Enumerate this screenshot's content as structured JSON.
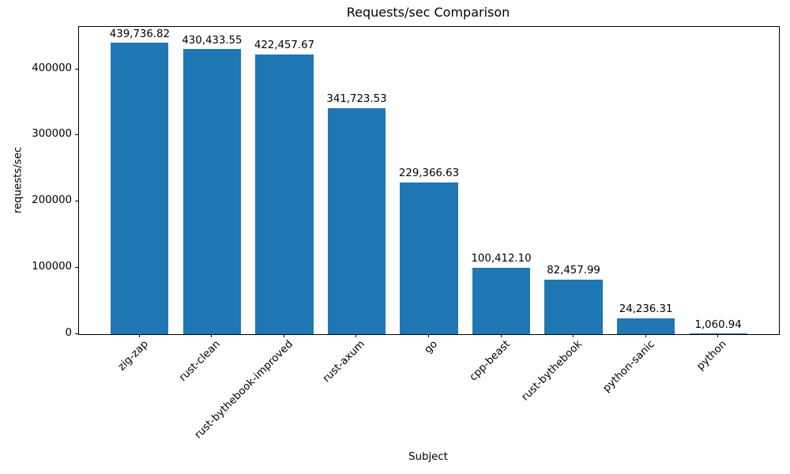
{
  "chart_data": {
    "type": "bar",
    "title": "Requests/sec Comparison",
    "xlabel": "Subject",
    "ylabel": "requests/sec",
    "categories": [
      "zig-zap",
      "rust-clean",
      "rust-bythebook-improved",
      "rust-axum",
      "go",
      "cpp-beast",
      "rust-bythebook",
      "python-sanic",
      "python"
    ],
    "values": [
      439736.82,
      430433.55,
      422457.67,
      341723.53,
      229366.63,
      100412.1,
      82457.99,
      24236.31,
      1060.94
    ],
    "value_labels": [
      "439,736.82",
      "430,433.55",
      "422,457.67",
      "341,723.53",
      "229,366.63",
      "100,412.10",
      "82,457.99",
      "24,236.31",
      "1,060.94"
    ],
    "y_ticks": [
      0,
      100000,
      200000,
      300000,
      400000
    ],
    "y_tick_labels": [
      "0",
      "100000",
      "200000",
      "300000",
      "400000"
    ],
    "ylim": [
      0,
      464000
    ],
    "bar_color": "#1f77b4",
    "background": "#ffffff",
    "grid": false,
    "legend": "none"
  }
}
